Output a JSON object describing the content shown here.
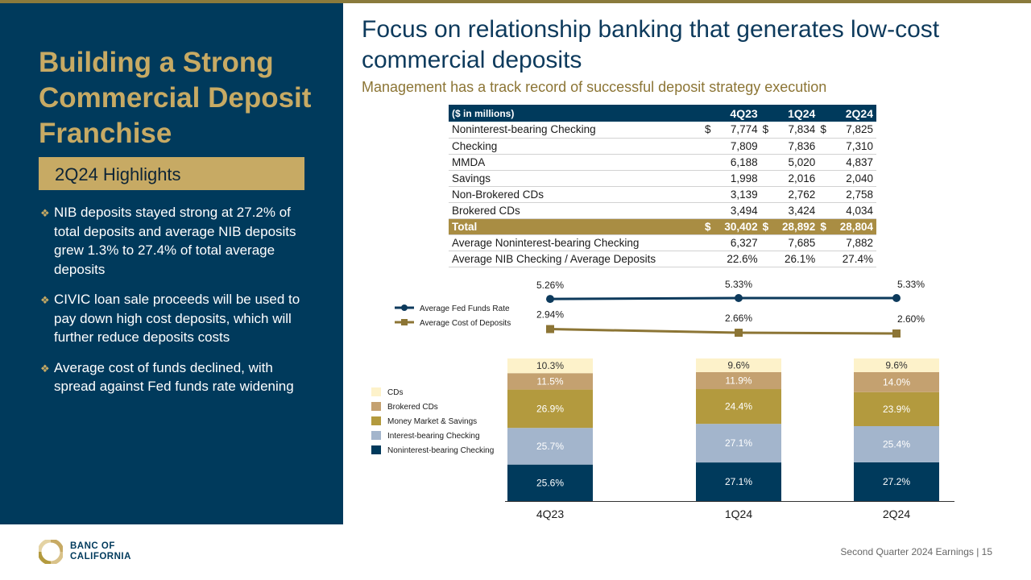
{
  "left": {
    "title": "Building a Strong Commercial Deposit Franchise",
    "highlights_label": "2Q24 Highlights",
    "bullets": [
      "NIB deposits stayed strong at 27.2% of total deposits and average NIB deposits grew 1.3% to 27.4% of total average deposits",
      "CIVIC loan sale proceeds will be used to pay down high cost deposits, which will further reduce deposits costs",
      "Average cost of funds declined, with spread against Fed funds rate widening"
    ]
  },
  "header": {
    "title": "Focus on relationship banking that generates low-cost commercial deposits",
    "subtitle": "Management has a track record of successful deposit strategy execution"
  },
  "table": {
    "header_label": "($ in millions)",
    "quarters": [
      "4Q23",
      "1Q24",
      "2Q24"
    ],
    "rows": [
      {
        "label": "Noninterest-bearing Checking",
        "cur": true,
        "values": [
          "7,774",
          "7,834",
          "7,825"
        ]
      },
      {
        "label": "Checking",
        "cur": false,
        "values": [
          "7,809",
          "7,836",
          "7,310"
        ]
      },
      {
        "label": "MMDA",
        "cur": false,
        "values": [
          "6,188",
          "5,020",
          "4,837"
        ]
      },
      {
        "label": "Savings",
        "cur": false,
        "values": [
          "1,998",
          "2,016",
          "2,040"
        ]
      },
      {
        "label": "Non-Brokered CDs",
        "cur": false,
        "values": [
          "3,139",
          "2,762",
          "2,758"
        ]
      },
      {
        "label": "Brokered CDs",
        "cur": false,
        "values": [
          "3,494",
          "3,424",
          "4,034"
        ]
      },
      {
        "label": "Total",
        "cur": true,
        "total": true,
        "values": [
          "30,402",
          "28,892",
          "28,804"
        ]
      },
      {
        "label": "Average Noninterest-bearing Checking",
        "cur": false,
        "values": [
          "6,327",
          "7,685",
          "7,882"
        ]
      },
      {
        "label": "Average NIB Checking / Average Deposits",
        "cur": false,
        "values": [
          "22.6%",
          "26.1%",
          "27.4%"
        ]
      }
    ]
  },
  "chart_data": [
    {
      "type": "line",
      "x": [
        "4Q23",
        "1Q24",
        "2Q24"
      ],
      "series": [
        {
          "name": "Average Fed Funds Rate",
          "values": [
            5.26,
            5.33,
            5.33
          ],
          "labels": [
            "5.26%",
            "5.33%",
            "5.33%"
          ],
          "color": "#0d3a5c"
        },
        {
          "name": "Average Cost of Deposits",
          "values": [
            2.94,
            2.66,
            2.6
          ],
          "labels": [
            "2.94%",
            "2.66%",
            "2.60%"
          ],
          "color": "#8c7535"
        }
      ]
    },
    {
      "type": "bar",
      "stacked": true,
      "categories": [
        "4Q23",
        "1Q24",
        "2Q24"
      ],
      "series": [
        {
          "name": "Noninterest-bearing Checking",
          "values": [
            25.6,
            27.1,
            27.2
          ],
          "labels": [
            "25.6%",
            "27.1%",
            "27.2%"
          ],
          "color": "#003a5c",
          "text_color": "#ffffff"
        },
        {
          "name": "Interest-bearing Checking",
          "values": [
            25.7,
            27.1,
            25.4
          ],
          "labels": [
            "25.7%",
            "27.1%",
            "25.4%"
          ],
          "color": "#a3b5cc",
          "text_color": "#ffffff"
        },
        {
          "name": "Money Market & Savings",
          "values": [
            26.9,
            24.4,
            23.9
          ],
          "labels": [
            "26.9%",
            "24.4%",
            "23.9%"
          ],
          "color": "#b39a3e",
          "text_color": "#ffffff"
        },
        {
          "name": "Brokered CDs",
          "values": [
            11.5,
            11.9,
            14.0
          ],
          "labels": [
            "11.5%",
            "11.9%",
            "14.0%"
          ],
          "color": "#c4a170",
          "text_color": "#ffffff"
        },
        {
          "name": "CDs",
          "values": [
            10.3,
            9.6,
            9.6
          ],
          "labels": [
            "10.3%",
            "9.6%",
            "9.6%"
          ],
          "color": "#fdf2ca",
          "text_color": "#333333"
        }
      ],
      "legend_order": [
        "CDs",
        "Brokered CDs",
        "Money Market & Savings",
        "Interest-bearing Checking",
        "Noninterest-bearing Checking"
      ]
    }
  ],
  "footer": {
    "logo_line1": "BANC OF",
    "logo_line2": "CALIFORNIA",
    "text": "Second Quarter 2024 Earnings |  15"
  }
}
